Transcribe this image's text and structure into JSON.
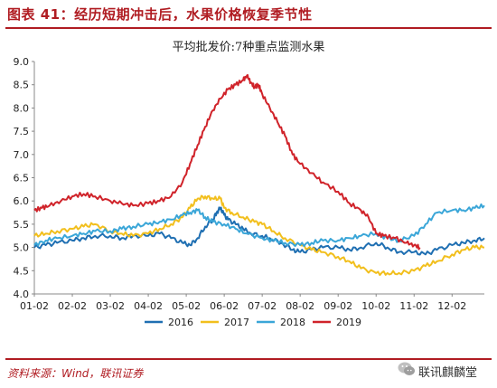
{
  "figure": {
    "title": "图表 41：经历短期冲击后，水果价格恢复季节性",
    "source": "资料来源：Wind，联讯证券",
    "watermark": "联讯麒麟堂"
  },
  "chart_data": {
    "type": "line",
    "title": "平均批发价:7种重点监测水果",
    "xlabel": "",
    "ylabel": "",
    "ylim": [
      4.0,
      9.0
    ],
    "yticks": [
      "4.0",
      "4.5",
      "5.0",
      "5.5",
      "6.0",
      "6.5",
      "7.0",
      "7.5",
      "8.0",
      "8.5",
      "9.0"
    ],
    "xlim": [
      1,
      12.85
    ],
    "xticks": [
      "01-02",
      "02-02",
      "03-02",
      "04-02",
      "05-02",
      "06-02",
      "07-02",
      "08-02",
      "09-02",
      "10-02",
      "11-02",
      "12-02"
    ],
    "legend_position": "bottom",
    "grid": false,
    "series": [
      {
        "name": "2016",
        "color": "#1f6fb2",
        "x": [
          1.0,
          1.3,
          1.6,
          2.0,
          2.3,
          2.6,
          3.0,
          3.3,
          3.6,
          4.0,
          4.3,
          4.6,
          4.9,
          5.1,
          5.3,
          5.5,
          5.7,
          5.8,
          5.9,
          6.0,
          6.1,
          6.3,
          6.5,
          6.7,
          7.0,
          7.2,
          7.5,
          7.8,
          8.0,
          8.3,
          8.6,
          9.0,
          9.3,
          9.6,
          10.0,
          10.3,
          10.6,
          11.0,
          11.3,
          11.6,
          12.0,
          12.3,
          12.6,
          12.85
        ],
        "y": [
          5.0,
          5.05,
          5.1,
          5.15,
          5.2,
          5.25,
          5.25,
          5.2,
          5.25,
          5.25,
          5.3,
          5.2,
          5.1,
          5.05,
          5.2,
          5.45,
          5.6,
          5.75,
          5.85,
          5.7,
          5.6,
          5.5,
          5.4,
          5.3,
          5.25,
          5.2,
          5.1,
          4.95,
          4.9,
          4.95,
          5.0,
          5.0,
          4.95,
          5.0,
          5.1,
          5.0,
          4.9,
          4.9,
          4.85,
          4.95,
          5.05,
          5.1,
          5.15,
          5.2
        ]
      },
      {
        "name": "2017",
        "color": "#f2bf1d",
        "x": [
          1.0,
          1.3,
          1.6,
          2.0,
          2.3,
          2.6,
          3.0,
          3.3,
          3.6,
          4.0,
          4.3,
          4.6,
          4.9,
          5.1,
          5.3,
          5.5,
          5.7,
          5.9,
          6.0,
          6.2,
          6.5,
          6.8,
          7.0,
          7.3,
          7.6,
          8.0,
          8.3,
          8.6,
          9.0,
          9.3,
          9.6,
          10.0,
          10.3,
          10.6,
          11.0,
          11.3,
          11.6,
          12.0,
          12.3,
          12.6,
          12.85
        ],
        "y": [
          5.25,
          5.3,
          5.35,
          5.4,
          5.45,
          5.5,
          5.35,
          5.3,
          5.25,
          5.3,
          5.4,
          5.5,
          5.65,
          5.85,
          6.05,
          6.1,
          6.05,
          6.05,
          5.85,
          5.75,
          5.65,
          5.55,
          5.5,
          5.35,
          5.2,
          5.05,
          4.95,
          4.9,
          4.8,
          4.7,
          4.55,
          4.45,
          4.45,
          4.45,
          4.5,
          4.6,
          4.7,
          4.85,
          4.95,
          5.0,
          5.0
        ]
      },
      {
        "name": "2018",
        "color": "#3aa6d8",
        "x": [
          1.0,
          1.3,
          1.6,
          2.0,
          2.3,
          2.6,
          3.0,
          3.3,
          3.6,
          4.0,
          4.3,
          4.6,
          4.9,
          5.1,
          5.3,
          5.5,
          5.7,
          6.0,
          6.3,
          6.6,
          7.0,
          7.3,
          7.6,
          8.0,
          8.3,
          8.6,
          9.0,
          9.3,
          9.6,
          10.0,
          10.3,
          10.6,
          11.0,
          11.3,
          11.6,
          12.0,
          12.3,
          12.6,
          12.85
        ],
        "y": [
          5.05,
          5.15,
          5.2,
          5.25,
          5.3,
          5.35,
          5.35,
          5.4,
          5.45,
          5.5,
          5.55,
          5.6,
          5.7,
          5.75,
          5.8,
          5.65,
          5.55,
          5.5,
          5.4,
          5.3,
          5.2,
          5.15,
          5.1,
          5.05,
          5.1,
          5.15,
          5.15,
          5.2,
          5.25,
          5.3,
          5.2,
          5.15,
          5.25,
          5.5,
          5.75,
          5.8,
          5.8,
          5.85,
          5.9
        ]
      },
      {
        "name": "2019",
        "color": "#d0232a",
        "x": [
          1.0,
          1.2,
          1.4,
          1.7,
          2.0,
          2.3,
          2.6,
          3.0,
          3.3,
          3.6,
          4.0,
          4.3,
          4.6,
          4.9,
          5.1,
          5.3,
          5.5,
          5.7,
          5.9,
          6.1,
          6.3,
          6.5,
          6.6,
          6.7,
          6.8,
          6.9,
          7.0,
          7.2,
          7.4,
          7.6,
          7.8,
          8.0,
          8.3,
          8.6,
          9.0,
          9.3,
          9.6,
          9.8,
          10.0,
          10.2,
          10.5,
          10.8,
          11.0,
          11.15
        ],
        "y": [
          5.8,
          5.85,
          5.9,
          6.0,
          6.1,
          6.15,
          6.1,
          6.0,
          5.95,
          5.9,
          5.95,
          6.0,
          6.1,
          6.4,
          6.8,
          7.2,
          7.6,
          7.95,
          8.2,
          8.4,
          8.5,
          8.6,
          8.7,
          8.55,
          8.45,
          8.5,
          8.3,
          8.0,
          7.7,
          7.4,
          7.0,
          6.8,
          6.6,
          6.4,
          6.2,
          5.95,
          5.8,
          5.65,
          5.3,
          5.25,
          5.2,
          5.1,
          5.05,
          5.0
        ]
      }
    ]
  }
}
